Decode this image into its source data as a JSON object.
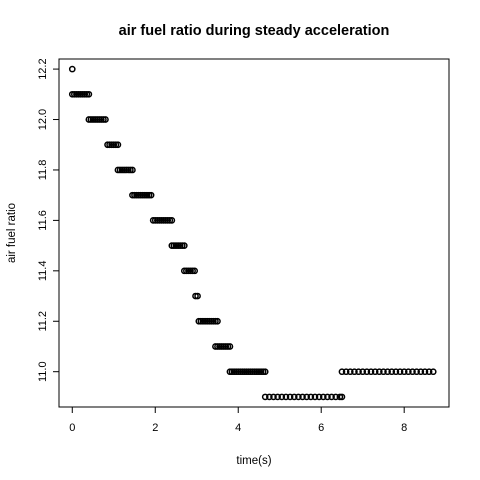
{
  "chart_data": {
    "type": "scatter",
    "title": "air fuel ratio during steady acceleration",
    "xlabel": "time(s)",
    "ylabel": "air fuel ratio",
    "xlim": [
      -0.32,
      9.08
    ],
    "ylim": [
      10.86,
      12.24
    ],
    "xticks": [
      0,
      2,
      4,
      6,
      8
    ],
    "xtick_labels": [
      "0",
      "2",
      "4",
      "6",
      "8"
    ],
    "yticks": [
      11.0,
      11.2,
      11.4,
      11.6,
      11.8,
      12.0,
      12.2
    ],
    "ytick_labels": [
      "11.0",
      "11.2",
      "11.4",
      "11.6",
      "11.8",
      "12.0",
      "12.2"
    ],
    "grid": false,
    "marker": "open-circle",
    "marker_color": "#000000",
    "segments": [
      {
        "y": 12.2,
        "x": [
          0.0
        ]
      },
      {
        "y": 12.1,
        "x": [
          0.0,
          0.05,
          0.1,
          0.15,
          0.2,
          0.25,
          0.3,
          0.35,
          0.4
        ]
      },
      {
        "y": 12.0,
        "x": [
          0.4,
          0.45,
          0.5,
          0.55,
          0.6,
          0.65,
          0.7,
          0.75,
          0.8
        ]
      },
      {
        "y": 11.9,
        "x": [
          0.85,
          0.9,
          0.95,
          1.0,
          1.05,
          1.1
        ]
      },
      {
        "y": 11.8,
        "x": [
          1.1,
          1.15,
          1.2,
          1.25,
          1.3,
          1.35,
          1.4,
          1.45
        ]
      },
      {
        "y": 11.7,
        "x": [
          1.45,
          1.5,
          1.55,
          1.6,
          1.65,
          1.7,
          1.75,
          1.8,
          1.85,
          1.9
        ]
      },
      {
        "y": 11.6,
        "x": [
          1.95,
          2.0,
          2.05,
          2.1,
          2.15,
          2.2,
          2.25,
          2.3,
          2.35,
          2.4
        ]
      },
      {
        "y": 11.5,
        "x": [
          2.4,
          2.45,
          2.5,
          2.55,
          2.6,
          2.65,
          2.7
        ]
      },
      {
        "y": 11.4,
        "x": [
          2.7,
          2.75,
          2.8,
          2.85,
          2.9,
          2.95
        ]
      },
      {
        "y": 11.3,
        "x": [
          2.97,
          3.02
        ]
      },
      {
        "y": 11.2,
        "x": [
          3.05,
          3.1,
          3.15,
          3.2,
          3.25,
          3.3,
          3.35,
          3.4,
          3.45,
          3.5
        ]
      },
      {
        "y": 11.1,
        "x": [
          3.45,
          3.5,
          3.55,
          3.6,
          3.65,
          3.7,
          3.75,
          3.8
        ]
      },
      {
        "y": 11.0,
        "x": [
          3.8,
          3.85,
          3.9,
          3.95,
          4.0,
          4.05,
          4.1,
          4.15,
          4.2,
          4.25,
          4.3,
          4.35,
          4.4,
          4.45,
          4.5,
          4.55,
          4.6,
          4.65
        ]
      },
      {
        "y": 10.9,
        "x": [
          4.65,
          4.75,
          4.85,
          4.95,
          5.05,
          5.15,
          5.25,
          5.35,
          5.45,
          5.55,
          5.65,
          5.75,
          5.85,
          5.95,
          6.05,
          6.15,
          6.25,
          6.35,
          6.45,
          6.5
        ]
      },
      {
        "y": 11.0,
        "x": [
          6.5,
          6.6,
          6.7,
          6.8,
          6.9,
          7.0,
          7.1,
          7.2,
          7.3,
          7.4,
          7.5,
          7.6,
          7.7,
          7.8,
          7.9,
          8.0,
          8.1,
          8.2,
          8.3,
          8.4,
          8.5,
          8.6,
          8.7
        ]
      }
    ]
  }
}
